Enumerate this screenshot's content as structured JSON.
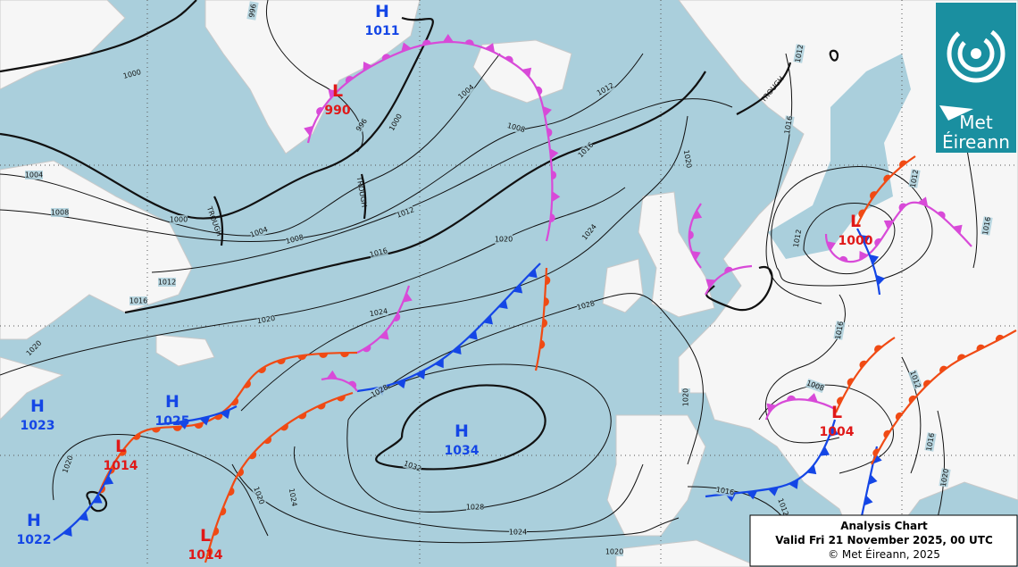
{
  "legend": {
    "title": "Analysis Chart",
    "valid": "Valid Fri 21 November 2025, 00 UTC",
    "copyright": "© Met Éireann, 2025"
  },
  "logo": {
    "line1": "Met",
    "line2": "Éireann"
  },
  "centers": [
    {
      "kind": "H",
      "pressure": "1011"
    },
    {
      "kind": "L",
      "pressure": "990"
    },
    {
      "kind": "H",
      "pressure": "1023"
    },
    {
      "kind": "H",
      "pressure": "1025"
    },
    {
      "kind": "L",
      "pressure": "1014"
    },
    {
      "kind": "H",
      "pressure": "1022"
    },
    {
      "kind": "L",
      "pressure": "1014"
    },
    {
      "kind": "H",
      "pressure": "1034"
    },
    {
      "kind": "L",
      "pressure": "1000"
    },
    {
      "kind": "L",
      "pressure": "1004"
    }
  ],
  "isobar_labels": [
    "996",
    "1000",
    "1000",
    "996",
    "1004",
    "1008",
    "1012",
    "1016",
    "1020",
    "1004",
    "1008",
    "1000",
    "1004",
    "1008",
    "1012",
    "1016",
    "1020",
    "1024",
    "1012",
    "1016",
    "1020",
    "1024",
    "1028",
    "1020",
    "1028",
    "1032",
    "1024",
    "1020",
    "1020",
    "1028",
    "1024",
    "1020",
    "1020",
    "1016",
    "1012",
    "1008",
    "1012",
    "1016",
    "1020",
    "1016",
    "1012",
    "1016",
    "1012",
    "1016",
    "1012"
  ],
  "trough_labels": [
    "TROUGH",
    "TROUGH",
    "TROUGH"
  ]
}
